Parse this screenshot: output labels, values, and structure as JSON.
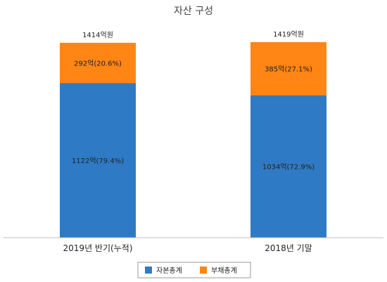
{
  "chart_data": {
    "type": "bar",
    "stacked": true,
    "title": "자산 구성",
    "categories": [
      "2019년 반기(누적)",
      "2018년 기말"
    ],
    "totals": [
      "1414억원",
      "1419억원"
    ],
    "series": [
      {
        "name": "자본총계",
        "color": "#2f7ac4",
        "values": [
          1122,
          1034
        ],
        "labels": [
          "1122억(79.4%)",
          "1034억(72.9%)"
        ]
      },
      {
        "name": "부채총계",
        "color": "#ff8514",
        "values": [
          292,
          385
        ],
        "labels": [
          "292억(20.6%)",
          "385억(27.1%)"
        ]
      }
    ],
    "ylim": [
      0,
      1500
    ],
    "grid": false,
    "legend_position": "bottom"
  }
}
